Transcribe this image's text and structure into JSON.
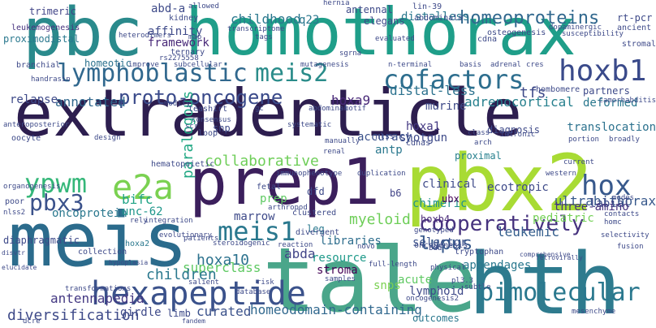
{
  "words": [
    {
      "text": "extradenticle",
      "color": "#2d1e4f"
    },
    {
      "text": "homothorax",
      "color": "#1f9e89"
    },
    {
      "text": "pbc",
      "color": "#2a8a8c"
    },
    {
      "text": "prep1",
      "color": "#3b1f5c"
    },
    {
      "text": "pbx2",
      "color": "#a8db34"
    },
    {
      "text": "meis",
      "color": "#2b6b8c"
    },
    {
      "text": "tale",
      "color": "#4aa68a"
    },
    {
      "text": "hth",
      "color": "#2e7b8e"
    },
    {
      "text": "hexapeptide",
      "color": "#3b528b"
    },
    {
      "text": "lymphoblastic",
      "color": "#31688e"
    },
    {
      "text": "meis2",
      "color": "#2a8c8a"
    },
    {
      "text": "cofactors",
      "color": "#2d6e8e"
    },
    {
      "text": "hoxb1",
      "color": "#3a4a8a"
    },
    {
      "text": "e2a",
      "color": "#7ad151"
    },
    {
      "text": "ypwm",
      "color": "#35b779"
    },
    {
      "text": "pbx3",
      "color": "#3b528b"
    },
    {
      "text": "meis1",
      "color": "#2a788e"
    },
    {
      "text": "cooperatively",
      "color": "#46327e"
    },
    {
      "text": "bimolecular",
      "color": "#2a788e"
    },
    {
      "text": "hox",
      "color": "#38598c"
    },
    {
      "text": "proto-oncogene",
      "color": "#3a4a8a"
    },
    {
      "text": "homeoproteins",
      "color": "#31688e"
    },
    {
      "text": "childhood",
      "color": "#2a788e"
    },
    {
      "text": "affinity",
      "color": "#3e4a89"
    },
    {
      "text": "framework",
      "color": "#482878"
    },
    {
      "text": "annotated",
      "color": "#31688e"
    },
    {
      "text": "collaborative",
      "color": "#6ece58"
    },
    {
      "text": "paralogous",
      "color": "#22a884"
    },
    {
      "text": "hoxa10",
      "color": "#2c728e"
    },
    {
      "text": "homeodomain-containing",
      "color": "#31688e"
    },
    {
      "text": "superclass",
      "color": "#5ec962"
    },
    {
      "text": "lupus",
      "color": "#38598c"
    },
    {
      "text": "leukemic",
      "color": "#355f8d"
    },
    {
      "text": "diversification",
      "color": "#3e4a89"
    },
    {
      "text": "antennapedia",
      "color": "#443983"
    },
    {
      "text": "children",
      "color": "#2a788e"
    },
    {
      "text": "ultrabithorax",
      "color": "#38598c"
    },
    {
      "text": "adrenocortical",
      "color": "#27808e"
    },
    {
      "text": "distal-less",
      "color": "#2c728e"
    },
    {
      "text": "distalless",
      "color": "#2a788e"
    },
    {
      "text": "oncoprotein",
      "color": "#2a788e"
    },
    {
      "text": "bifc",
      "color": "#20a386"
    },
    {
      "text": "unc-62",
      "color": "#1f968b"
    },
    {
      "text": "curated",
      "color": "#3b528b"
    },
    {
      "text": "girdle",
      "color": "#3e4a89"
    },
    {
      "text": "limb",
      "color": "#3e4a89"
    },
    {
      "text": "myeloid",
      "color": "#6ece58"
    },
    {
      "text": "chimeric",
      "color": "#21918c"
    },
    {
      "text": "selector",
      "color": "#3b528b"
    },
    {
      "text": "abda",
      "color": "#414487"
    },
    {
      "text": "resource",
      "color": "#1f9a8a"
    },
    {
      "text": "stroma",
      "color": "#440154"
    },
    {
      "text": "libraries",
      "color": "#2e6e8e"
    },
    {
      "text": "acute",
      "color": "#5ec962"
    },
    {
      "text": "marrow",
      "color": "#3e4a89"
    },
    {
      "text": "leg",
      "color": "#2a788e"
    },
    {
      "text": "hoxa9",
      "color": "#482878"
    },
    {
      "text": "hoxa1",
      "color": "#443983"
    },
    {
      "text": "shotgun",
      "color": "#3e4a89"
    },
    {
      "text": "clinical",
      "color": "#3e4a89"
    },
    {
      "text": "ecotropic",
      "color": "#3e4a89"
    },
    {
      "text": "tfs",
      "color": "#3e4a89"
    },
    {
      "text": "relapse",
      "color": "#3e4a89"
    },
    {
      "text": "deformed",
      "color": "#2a788e"
    },
    {
      "text": "partners",
      "color": "#3e4a89"
    },
    {
      "text": "murine",
      "color": "#3e4a89"
    },
    {
      "text": "pediatric",
      "color": "#73d056"
    },
    {
      "text": "labial",
      "color": "#3e4a89"
    },
    {
      "text": "translocation",
      "color": "#2c728e"
    },
    {
      "text": "three-amino",
      "color": "#46327e"
    },
    {
      "text": "ubx",
      "color": "#440154"
    },
    {
      "text": "hoxb4",
      "color": "#482878"
    },
    {
      "text": "b6",
      "color": "#414487"
    },
    {
      "text": "snp",
      "color": "#3e4a89"
    },
    {
      "text": "prep",
      "color": "#5ec962"
    },
    {
      "text": "snps",
      "color": "#7ad151"
    },
    {
      "text": "lymphoid",
      "color": "#3e4a89"
    },
    {
      "text": "outcomes",
      "color": "#2a788e"
    },
    {
      "text": "appendages",
      "color": "#2a788e"
    },
    {
      "text": "antp",
      "color": "#2a788e"
    },
    {
      "text": "accuracy",
      "color": "#3b528b"
    },
    {
      "text": "q23",
      "color": "#2a788e"
    },
    {
      "text": "antennal",
      "color": "#3e4a89"
    },
    {
      "text": "elegans",
      "color": "#3e4a89"
    },
    {
      "text": "abd-a",
      "color": "#3e4a89"
    },
    {
      "text": "trimeric",
      "color": "#414487"
    },
    {
      "text": "leukemogenesis",
      "color": "#46327e"
    },
    {
      "text": "homeotic",
      "color": "#2c728e"
    },
    {
      "text": "proximodistal",
      "color": "#2a788e"
    },
    {
      "text": "diaphragmatic",
      "color": "#3e4a89"
    },
    {
      "text": "hoxa2",
      "color": "#2a788e"
    },
    {
      "text": "collection",
      "color": "#3e4a89"
    },
    {
      "text": "oncogenesis",
      "color": "#3e4a89"
    },
    {
      "text": "tryptophan",
      "color": "#3e4a89"
    },
    {
      "text": "rhombomere",
      "color": "#3e4a89"
    },
    {
      "text": "rt-pcr",
      "color": "#3e4a89"
    },
    {
      "text": "teashirt",
      "color": "#3e4a89"
    },
    {
      "text": "diagnosis",
      "color": "#3e4a89"
    },
    {
      "text": "proximal",
      "color": "#27808e"
    },
    {
      "text": "fetal",
      "color": "#3e4a89"
    },
    {
      "text": "dfd",
      "color": "#3e4a89"
    },
    {
      "text": "clustered",
      "color": "#3e4a89"
    },
    {
      "text": "divergent",
      "color": "#3e4a89"
    },
    {
      "text": "osteogenesis",
      "color": "#3e4a89"
    },
    {
      "text": "cdna",
      "color": "#3e4a89"
    },
    {
      "text": "cdnas",
      "color": "#3e4a89"
    },
    {
      "text": "kidney",
      "color": "#3e4a89"
    },
    {
      "text": "hernia",
      "color": "#3e4a89"
    },
    {
      "text": "lin-39",
      "color": "#3e4a89"
    },
    {
      "text": "abdominala",
      "color": "#3e4a89"
    },
    {
      "text": "ternary",
      "color": "#3e4a89"
    },
    {
      "text": "heterodimers",
      "color": "#3e4a89"
    },
    {
      "text": "improve",
      "color": "#3e4a89"
    },
    {
      "text": "subcellular",
      "color": "#3e4a89"
    },
    {
      "text": "transcriptome",
      "color": "#3e4a89"
    },
    {
      "text": "mutagenesis",
      "color": "#3e4a89"
    },
    {
      "text": "allowed",
      "color": "#3e4a89"
    },
    {
      "text": "tags",
      "color": "#3e4a89"
    },
    {
      "text": "map",
      "color": "#3e4a89"
    },
    {
      "text": "rs2275558",
      "color": "#3e4a89"
    },
    {
      "text": "sgrna",
      "color": "#3e4a89"
    },
    {
      "text": "n-terminal",
      "color": "#3e4a89"
    },
    {
      "text": "evaluated",
      "color": "#3e4a89"
    },
    {
      "text": "basis",
      "color": "#3e4a89"
    },
    {
      "text": "adrenal",
      "color": "#3e4a89"
    },
    {
      "text": "cres",
      "color": "#3e4a89"
    },
    {
      "text": "dopaminergic",
      "color": "#3e4a89"
    },
    {
      "text": "susceptibility",
      "color": "#3e4a89"
    },
    {
      "text": "ancient",
      "color": "#3e4a89"
    },
    {
      "text": "stromal",
      "color": "#3e4a89"
    },
    {
      "text": "motif",
      "color": "#3e4a89"
    },
    {
      "text": "abdominal",
      "color": "#3e4a89"
    },
    {
      "text": "modify",
      "color": "#3e4a89"
    },
    {
      "text": "gc",
      "color": "#3e4a89"
    },
    {
      "text": "consensus",
      "color": "#3e4a89"
    },
    {
      "text": "scr",
      "color": "#3e4a89"
    },
    {
      "text": "loop",
      "color": "#3e4a89"
    },
    {
      "text": "systematic",
      "color": "#3e4a89"
    },
    {
      "text": "manually",
      "color": "#3e4a89"
    },
    {
      "text": "nlss",
      "color": "#3e4a89"
    },
    {
      "text": "renal",
      "color": "#3e4a89"
    },
    {
      "text": "class",
      "color": "#3e4a89"
    },
    {
      "text": "arch",
      "color": "#3e4a89"
    },
    {
      "text": "intronic",
      "color": "#3e4a89"
    },
    {
      "text": "hematopoietic",
      "color": "#3e4a89"
    },
    {
      "text": "camorhabditis",
      "color": "#3e4a89"
    },
    {
      "text": "broadly",
      "color": "#3e4a89"
    },
    {
      "text": "portion",
      "color": "#3e4a89"
    },
    {
      "text": "anteroposterior",
      "color": "#3e4a89"
    },
    {
      "text": "oocyte",
      "color": "#3e4a89"
    },
    {
      "text": "design",
      "color": "#3e4a89"
    },
    {
      "text": "nlss2",
      "color": "#3e4a89"
    },
    {
      "text": "branchial",
      "color": "#3e4a89"
    },
    {
      "text": "handrasin",
      "color": "#3e4a89"
    },
    {
      "text": "organogenesis",
      "color": "#3e4a89"
    },
    {
      "text": "poor",
      "color": "#3e4a89"
    },
    {
      "text": "rely",
      "color": "#3e4a89"
    },
    {
      "text": "integration",
      "color": "#3e4a89"
    },
    {
      "text": "arthropod",
      "color": "#3e4a89"
    },
    {
      "text": "duplication",
      "color": "#3e4a89"
    },
    {
      "text": "immunophenotype",
      "color": "#3e4a89"
    },
    {
      "text": "evolutionary",
      "color": "#3e4a89"
    },
    {
      "text": "steroidogenic",
      "color": "#3e4a89"
    },
    {
      "text": "reaction",
      "color": "#3e4a89"
    },
    {
      "text": "novo",
      "color": "#3e4a89"
    },
    {
      "text": "full-length",
      "color": "#3e4a89"
    },
    {
      "text": "genotyped",
      "color": "#3e4a89"
    },
    {
      "text": "bud",
      "color": "#3e4a89"
    },
    {
      "text": "physical",
      "color": "#3e4a89"
    },
    {
      "text": "patients",
      "color": "#3e4a89"
    },
    {
      "text": "contacts",
      "color": "#3e4a89"
    },
    {
      "text": "homc",
      "color": "#3e4a89"
    },
    {
      "text": "selectivity",
      "color": "#3e4a89"
    },
    {
      "text": "fusion",
      "color": "#3e4a89"
    },
    {
      "text": "modes",
      "color": "#3e4a89"
    },
    {
      "text": "western",
      "color": "#3e4a89"
    },
    {
      "text": "current",
      "color": "#3e4a89"
    },
    {
      "text": "hypoplasia",
      "color": "#3e4a89"
    },
    {
      "text": "transformations",
      "color": "#3e4a89"
    },
    {
      "text": "salient",
      "color": "#3e4a89"
    },
    {
      "text": "risk",
      "color": "#3e4a89"
    },
    {
      "text": "samples",
      "color": "#3e4a89"
    },
    {
      "text": "database",
      "color": "#3e4a89"
    },
    {
      "text": "pl3.3",
      "color": "#3e4a89"
    },
    {
      "text": "subtle",
      "color": "#3e4a89"
    },
    {
      "text": "oncogenesis2",
      "color": "#3e4a89"
    },
    {
      "text": "comprehensive",
      "color": "#3e4a89"
    },
    {
      "text": "retrovirally",
      "color": "#3e4a89"
    },
    {
      "text": "mesenchyme",
      "color": "#3e4a89"
    },
    {
      "text": "dcre",
      "color": "#3e4a89"
    },
    {
      "text": "fandem",
      "color": "#3e4a89"
    },
    {
      "text": "elucidate",
      "color": "#3e4a89"
    },
    {
      "text": "disvtr",
      "color": "#3e4a89"
    }
  ]
}
